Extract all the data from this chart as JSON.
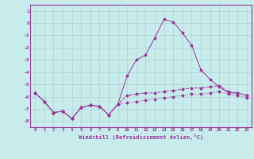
{
  "xlabel": "Windchill (Refroidissement éolien,°C)",
  "bg_color": "#c8ecec",
  "grid_color": "#b0d8d8",
  "line_color": "#993399",
  "x_values": [
    0,
    1,
    2,
    3,
    4,
    5,
    6,
    7,
    8,
    9,
    10,
    11,
    12,
    13,
    14,
    15,
    16,
    17,
    18,
    19,
    20,
    21,
    22,
    23
  ],
  "line1": [
    -5.7,
    -6.4,
    -7.3,
    -7.2,
    -7.8,
    -6.9,
    -6.7,
    -6.8,
    -7.5,
    -6.6,
    -4.3,
    -3.0,
    -2.6,
    -1.2,
    0.3,
    0.1,
    -0.8,
    -1.8,
    -3.8,
    -4.6,
    -5.2,
    -5.7,
    -5.7,
    -5.9
  ],
  "line2": [
    -5.7,
    -6.4,
    -7.3,
    -7.2,
    -7.8,
    -6.9,
    -6.7,
    -6.8,
    -7.5,
    -6.6,
    -5.9,
    -5.8,
    -5.7,
    -5.7,
    -5.6,
    -5.5,
    -5.4,
    -5.3,
    -5.3,
    -5.2,
    -5.1,
    -5.6,
    -5.7,
    -5.9
  ],
  "line3": [
    -5.7,
    -6.4,
    -7.3,
    -7.2,
    -7.8,
    -6.9,
    -6.7,
    -6.8,
    -7.5,
    -6.6,
    -6.5,
    -6.4,
    -6.3,
    -6.2,
    -6.1,
    -6.0,
    -5.9,
    -5.8,
    -5.8,
    -5.7,
    -5.6,
    -5.8,
    -5.9,
    -6.1
  ],
  "ylim": [
    -8.5,
    1.5
  ],
  "yticks": [
    1,
    0,
    -1,
    -2,
    -3,
    -4,
    -5,
    -6,
    -7,
    -8
  ],
  "xlim": [
    -0.5,
    23.5
  ]
}
